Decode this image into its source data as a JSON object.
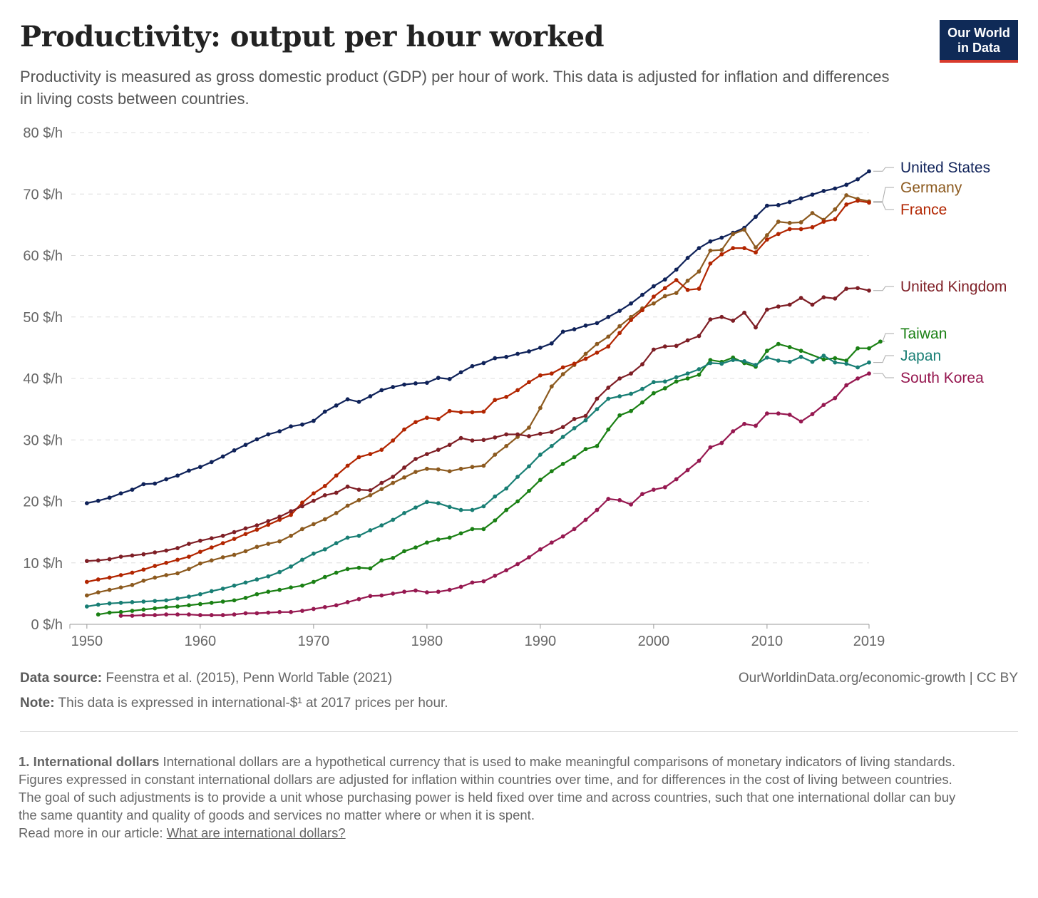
{
  "header": {
    "title": "Productivity: output per hour worked",
    "subtitle": "Productivity is measured as gross domestic product (GDP) per hour of work. This data is adjusted for inflation and differences in living costs between countries.",
    "logo_line1": "Our World",
    "logo_line2": "in Data"
  },
  "footer": {
    "source_label": "Data source:",
    "source_text": "Feenstra et al. (2015), Penn World Table (2021)",
    "url_text": "OurWorldinData.org/economic-growth | CC BY",
    "note_label": "Note:",
    "note_text": "This data is expressed in international-$¹ at 2017 prices per hour."
  },
  "notes": {
    "heading": "1. International dollars",
    "p1": "International dollars are a hypothetical currency that is used to make meaningful comparisons of monetary indicators of living standards.",
    "p2": "Figures expressed in constant international dollars are adjusted for inflation within countries over time, and for differences in the cost of living between countries.",
    "p3": "The goal of such adjustments is to provide a unit whose purchasing power is held fixed over time and across countries, such that one international dollar can buy the same quantity and quality of goods and services no matter where or when it is spent.",
    "link_prefix": "Read more in our article: ",
    "link_text": "What are international dollars?"
  },
  "chart_data": {
    "type": "line",
    "title": "Productivity: output per hour worked",
    "xlabel": "",
    "ylabel": "",
    "xlim": [
      1950,
      2019
    ],
    "ylim": [
      0,
      80
    ],
    "x_ticks": [
      1950,
      1960,
      1970,
      1980,
      1990,
      2000,
      2010,
      2019
    ],
    "y_ticks": [
      0,
      10,
      20,
      30,
      40,
      50,
      60,
      70,
      80
    ],
    "y_tick_labels": [
      "0 $/h",
      "10 $/h",
      "20 $/h",
      "30 $/h",
      "40 $/h",
      "50 $/h",
      "60 $/h",
      "70 $/h",
      "80 $/h"
    ],
    "grid": "horizontal dashed",
    "legend": "right, labels at line ends",
    "series": [
      {
        "name": "United States",
        "color": "#0f2259",
        "start": 1950,
        "values": [
          19.7,
          20.1,
          20.6,
          21.3,
          21.9,
          22.8,
          22.9,
          23.6,
          24.2,
          25.0,
          25.6,
          26.4,
          27.3,
          28.3,
          29.2,
          30.1,
          30.9,
          31.4,
          32.2,
          32.5,
          33.1,
          34.6,
          35.6,
          36.6,
          36.2,
          37.1,
          38.1,
          38.6,
          39.0,
          39.2,
          39.3,
          40.1,
          39.9,
          41.0,
          42.0,
          42.5,
          43.3,
          43.5,
          44.0,
          44.4,
          45.0,
          45.7,
          47.6,
          48.0,
          48.6,
          49.0,
          50.0,
          51.0,
          52.2,
          53.6,
          55.0,
          56.1,
          57.7,
          59.6,
          61.2,
          62.3,
          62.9,
          63.7,
          64.5,
          66.3,
          68.1,
          68.2,
          68.7,
          69.3,
          69.9,
          70.5,
          70.9,
          71.5,
          72.4,
          73.7
        ]
      },
      {
        "name": "Germany",
        "color": "#8c5a1f",
        "start": 1950,
        "values": [
          4.7,
          5.2,
          5.6,
          6.0,
          6.4,
          7.1,
          7.6,
          8.0,
          8.3,
          9.0,
          9.9,
          10.4,
          10.9,
          11.3,
          11.9,
          12.6,
          13.1,
          13.5,
          14.4,
          15.5,
          16.3,
          17.1,
          18.1,
          19.3,
          20.2,
          21.0,
          22.0,
          23.0,
          23.9,
          24.8,
          25.3,
          25.2,
          24.9,
          25.3,
          25.6,
          25.8,
          27.6,
          29.0,
          30.5,
          32.0,
          35.2,
          38.7,
          40.7,
          42.2,
          44.0,
          45.6,
          46.8,
          48.5,
          50.0,
          51.4,
          52.2,
          53.4,
          53.9,
          55.9,
          57.4,
          60.8,
          60.9,
          63.5,
          64.2,
          61.3,
          63.3,
          65.5,
          65.3,
          65.4,
          66.9,
          65.8,
          67.5,
          69.8,
          69.2,
          68.8
        ]
      },
      {
        "name": "France",
        "color": "#b22500",
        "start": 1950,
        "values": [
          6.9,
          7.3,
          7.6,
          8.0,
          8.4,
          8.9,
          9.5,
          10.0,
          10.5,
          11.0,
          11.8,
          12.5,
          13.2,
          13.9,
          14.7,
          15.4,
          16.2,
          17.0,
          17.8,
          19.8,
          21.3,
          22.5,
          24.2,
          25.8,
          27.2,
          27.7,
          28.4,
          29.9,
          31.7,
          32.9,
          33.6,
          33.4,
          34.7,
          34.5,
          34.5,
          34.6,
          36.5,
          37.0,
          38.1,
          39.4,
          40.5,
          40.8,
          41.8,
          42.4,
          43.2,
          44.2,
          45.2,
          47.4,
          49.5,
          51.1,
          53.3,
          54.7,
          56.0,
          54.4,
          54.6,
          58.7,
          60.2,
          61.2,
          61.2,
          60.5,
          62.6,
          63.5,
          64.3,
          64.3,
          64.6,
          65.5,
          65.9,
          68.3,
          68.9,
          68.6
        ]
      },
      {
        "name": "United Kingdom",
        "color": "#7e1e25",
        "start": 1950,
        "values": [
          10.3,
          10.4,
          10.6,
          11.0,
          11.2,
          11.4,
          11.7,
          12.0,
          12.4,
          13.1,
          13.6,
          14.0,
          14.4,
          15.0,
          15.6,
          16.1,
          16.8,
          17.5,
          18.4,
          19.2,
          20.1,
          21.0,
          21.4,
          22.4,
          21.9,
          21.8,
          23.0,
          24.0,
          25.5,
          26.9,
          27.7,
          28.4,
          29.2,
          30.3,
          29.9,
          30.0,
          30.4,
          30.9,
          30.9,
          30.6,
          31.0,
          31.3,
          32.1,
          33.4,
          33.9,
          36.7,
          38.5,
          40.0,
          40.8,
          42.3,
          44.7,
          45.2,
          45.3,
          46.2,
          46.9,
          49.6,
          50.0,
          49.4,
          50.7,
          48.3,
          51.2,
          51.7,
          52.0,
          53.1,
          52.0,
          53.2,
          53.0,
          54.6,
          54.7,
          54.3
        ]
      },
      {
        "name": "Taiwan",
        "color": "#1a8014",
        "start": 1951,
        "values": [
          1.6,
          1.9,
          2.0,
          2.2,
          2.4,
          2.6,
          2.8,
          2.9,
          3.1,
          3.3,
          3.5,
          3.7,
          3.9,
          4.3,
          4.9,
          5.3,
          5.6,
          6.0,
          6.3,
          6.9,
          7.7,
          8.4,
          9.0,
          9.2,
          9.1,
          10.4,
          10.8,
          11.9,
          12.5,
          13.3,
          13.8,
          14.1,
          14.8,
          15.5,
          15.5,
          16.9,
          18.6,
          20.0,
          21.7,
          23.5,
          24.9,
          26.1,
          27.2,
          28.5,
          29.0,
          31.7,
          34.0,
          34.7,
          36.1,
          37.6,
          38.4,
          39.5,
          40.0,
          40.6,
          43.0,
          42.7,
          43.4,
          42.5,
          41.9,
          44.5,
          45.6,
          45.1,
          44.5,
          null,
          43.1,
          43.3,
          42.9,
          44.9,
          44.9,
          46.0
        ]
      },
      {
        "name": "Japan",
        "color": "#187e74",
        "start": 1950,
        "values": [
          2.9,
          3.2,
          3.4,
          3.5,
          3.6,
          3.7,
          3.8,
          3.9,
          4.2,
          4.5,
          4.9,
          5.4,
          5.8,
          6.3,
          6.8,
          7.3,
          7.8,
          8.5,
          9.4,
          10.5,
          11.5,
          12.2,
          13.2,
          14.1,
          14.4,
          15.3,
          16.1,
          17.0,
          18.1,
          19.0,
          19.9,
          19.7,
          19.1,
          18.6,
          18.6,
          19.2,
          20.8,
          22.1,
          24.0,
          25.7,
          27.6,
          29.0,
          30.5,
          31.9,
          33.2,
          35.0,
          36.7,
          37.1,
          37.5,
          38.3,
          39.4,
          39.5,
          40.2,
          40.8,
          41.5,
          42.5,
          42.4,
          43.0,
          42.8,
          42.2,
          43.4,
          42.9,
          42.7,
          43.5,
          42.7,
          43.7,
          42.6,
          42.4,
          41.8,
          42.6
        ]
      },
      {
        "name": "South Korea",
        "color": "#961850",
        "start": 1953,
        "values": [
          1.4,
          1.4,
          1.5,
          1.5,
          1.6,
          1.6,
          1.6,
          1.5,
          1.5,
          1.5,
          1.6,
          1.8,
          1.8,
          1.9,
          2.0,
          2.0,
          2.2,
          2.5,
          2.8,
          3.1,
          3.6,
          4.1,
          4.6,
          4.7,
          5.0,
          5.3,
          5.5,
          5.2,
          5.3,
          5.6,
          6.1,
          6.8,
          7.0,
          7.9,
          8.8,
          9.8,
          10.9,
          12.2,
          13.3,
          14.3,
          15.5,
          17.0,
          18.6,
          20.4,
          20.2,
          19.5,
          21.2,
          21.9,
          22.3,
          23.6,
          25.1,
          26.6,
          28.8,
          29.5,
          31.4,
          32.6,
          32.3,
          34.3,
          34.3,
          34.1,
          33.0,
          34.2,
          35.7,
          36.8,
          38.9,
          40.0,
          40.8
        ]
      }
    ]
  }
}
